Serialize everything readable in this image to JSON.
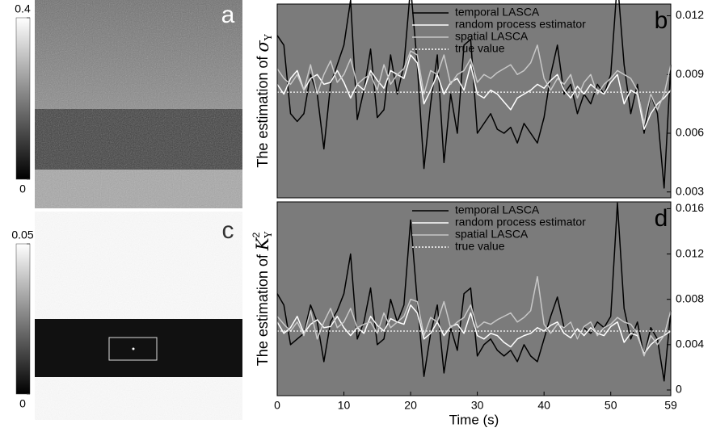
{
  "images": [
    {
      "label": "a",
      "clim": [
        0,
        0.4
      ],
      "ticks": [
        0,
        0.4
      ]
    },
    {
      "label": "c",
      "clim": [
        0,
        0.05
      ],
      "ticks": [
        0,
        0.05
      ]
    }
  ],
  "chart_data": [
    {
      "type": "line",
      "label": "b",
      "ylabel": "The estimation of ",
      "ylabel_symbol": "σ",
      "ylabel_subscript": "Y",
      "x": [
        0,
        1,
        2,
        3,
        4,
        5,
        6,
        7,
        8,
        9,
        10,
        11,
        12,
        13,
        14,
        15,
        16,
        17,
        18,
        19,
        20,
        21,
        22,
        23,
        24,
        25,
        26,
        27,
        28,
        29,
        30,
        31,
        32,
        33,
        34,
        35,
        36,
        37,
        38,
        39,
        40,
        41,
        42,
        43,
        44,
        45,
        46,
        47,
        48,
        49,
        50,
        51,
        52,
        53,
        54,
        55,
        56,
        57,
        58,
        59
      ],
      "xlim": [
        0,
        59
      ],
      "ylim": [
        0.0027,
        0.0126
      ],
      "yticks": [
        0.003,
        0.006,
        0.009,
        0.012
      ],
      "series": [
        {
          "name": "temporal LASCA",
          "color": "#000000",
          "values": [
            0.011,
            0.0105,
            0.007,
            0.0066,
            0.007,
            0.009,
            0.008,
            0.0052,
            0.0085,
            0.0095,
            0.0105,
            0.0128,
            0.0067,
            0.0082,
            0.0103,
            0.0068,
            0.0072,
            0.01,
            0.008,
            0.0095,
            0.0135,
            0.0095,
            0.0042,
            0.0075,
            0.01,
            0.0045,
            0.008,
            0.006,
            0.0105,
            0.0108,
            0.006,
            0.0065,
            0.007,
            0.0062,
            0.006,
            0.0063,
            0.0055,
            0.0065,
            0.006,
            0.0055,
            0.0068,
            0.009,
            0.0105,
            0.008,
            0.0085,
            0.007,
            0.008,
            0.0075,
            0.0085,
            0.008,
            0.009,
            0.0138,
            0.0095,
            0.007,
            0.0085,
            0.006,
            0.008,
            0.007,
            0.0032,
            0.0095
          ]
        },
        {
          "name": "random process estimator",
          "color": "#ffffff",
          "values": [
            0.0085,
            0.008,
            0.0088,
            0.0092,
            0.0082,
            0.0088,
            0.009,
            0.0085,
            0.0086,
            0.0092,
            0.0086,
            0.0078,
            0.0085,
            0.0082,
            0.0092,
            0.0087,
            0.0083,
            0.0092,
            0.009,
            0.0088,
            0.01,
            0.0096,
            0.0075,
            0.0082,
            0.009,
            0.008,
            0.0086,
            0.0088,
            0.0082,
            0.0095,
            0.008,
            0.0078,
            0.0082,
            0.008,
            0.0076,
            0.0072,
            0.0078,
            0.008,
            0.0082,
            0.0085,
            0.0083,
            0.0087,
            0.009,
            0.0082,
            0.0078,
            0.0084,
            0.008,
            0.0085,
            0.0082,
            0.008,
            0.0086,
            0.009,
            0.0075,
            0.0082,
            0.008,
            0.0062,
            0.007,
            0.0075,
            0.0078,
            0.0082
          ]
        },
        {
          "name": "spatial LASCA",
          "color": "#c8c8c8",
          "values": [
            0.0093,
            0.0088,
            0.0085,
            0.009,
            0.0082,
            0.0095,
            0.008,
            0.009,
            0.0097,
            0.0086,
            0.009,
            0.0098,
            0.0085,
            0.0088,
            0.009,
            0.0082,
            0.0095,
            0.0085,
            0.009,
            0.0093,
            0.0102,
            0.01,
            0.008,
            0.0092,
            0.009,
            0.01,
            0.0085,
            0.009,
            0.0092,
            0.0098,
            0.0086,
            0.009,
            0.0088,
            0.0091,
            0.0093,
            0.0095,
            0.009,
            0.0092,
            0.0096,
            0.0105,
            0.0088,
            0.0082,
            0.0088,
            0.0085,
            0.009,
            0.0078,
            0.0086,
            0.009,
            0.008,
            0.0085,
            0.0088,
            0.0092,
            0.009,
            0.0088,
            0.0082,
            0.0065,
            0.008,
            0.0072,
            0.008,
            0.0095
          ]
        },
        {
          "name": "true value",
          "color": "#ffffff",
          "dashed": true,
          "constant": 0.0081
        }
      ]
    },
    {
      "type": "line",
      "label": "d",
      "ylabel": "The estimation of ",
      "ylabel_symbol": "K",
      "ylabel_superscript": "2",
      "ylabel_subscript": "Y",
      "xlabel": "Time (s)",
      "x": [
        0,
        1,
        2,
        3,
        4,
        5,
        6,
        7,
        8,
        9,
        10,
        11,
        12,
        13,
        14,
        15,
        16,
        17,
        18,
        19,
        20,
        21,
        22,
        23,
        24,
        25,
        26,
        27,
        28,
        29,
        30,
        31,
        32,
        33,
        34,
        35,
        36,
        37,
        38,
        39,
        40,
        41,
        42,
        43,
        44,
        45,
        46,
        47,
        48,
        49,
        50,
        51,
        52,
        53,
        54,
        55,
        56,
        57,
        58,
        59
      ],
      "xlim": [
        0,
        59
      ],
      "xticks": [
        0,
        10,
        20,
        30,
        40,
        50,
        59
      ],
      "ylim": [
        -0.0005,
        0.0166
      ],
      "yticks": [
        0,
        0.004,
        0.008,
        0.012,
        0.016
      ],
      "series": [
        {
          "name": "temporal LASCA",
          "color": "#000000",
          "values": [
            0.0085,
            0.0075,
            0.004,
            0.0045,
            0.005,
            0.0075,
            0.006,
            0.0025,
            0.006,
            0.007,
            0.0085,
            0.012,
            0.0045,
            0.006,
            0.009,
            0.004,
            0.0045,
            0.008,
            0.006,
            0.0075,
            0.015,
            0.0078,
            0.0012,
            0.005,
            0.0075,
            0.0015,
            0.0055,
            0.0035,
            0.0085,
            0.009,
            0.003,
            0.004,
            0.0045,
            0.0035,
            0.003,
            0.0035,
            0.0025,
            0.004,
            0.003,
            0.0025,
            0.0045,
            0.0065,
            0.0082,
            0.0055,
            0.006,
            0.0045,
            0.0055,
            0.005,
            0.006,
            0.0055,
            0.0065,
            0.0165,
            0.0072,
            0.0045,
            0.006,
            0.003,
            0.0055,
            0.0045,
            0.0008,
            0.007
          ]
        },
        {
          "name": "random process estimator",
          "color": "#ffffff",
          "values": [
            0.006,
            0.005,
            0.0055,
            0.0065,
            0.005,
            0.0058,
            0.0062,
            0.0055,
            0.0056,
            0.0065,
            0.0055,
            0.0048,
            0.0055,
            0.005,
            0.0065,
            0.0057,
            0.0052,
            0.0063,
            0.006,
            0.0058,
            0.0075,
            0.0068,
            0.0045,
            0.005,
            0.006,
            0.0048,
            0.0056,
            0.0058,
            0.005,
            0.0068,
            0.0048,
            0.0045,
            0.005,
            0.0048,
            0.0042,
            0.0038,
            0.0045,
            0.0048,
            0.005,
            0.0055,
            0.0052,
            0.0057,
            0.006,
            0.005,
            0.0046,
            0.0054,
            0.0048,
            0.0055,
            0.005,
            0.0048,
            0.0056,
            0.006,
            0.0042,
            0.005,
            0.0048,
            0.0032,
            0.004,
            0.0045,
            0.0048,
            0.0052
          ]
        },
        {
          "name": "spatial LASCA",
          "color": "#c8c8c8",
          "values": [
            0.0065,
            0.0058,
            0.0052,
            0.006,
            0.0048,
            0.007,
            0.0045,
            0.006,
            0.0072,
            0.0055,
            0.006,
            0.0072,
            0.0055,
            0.0058,
            0.006,
            0.005,
            0.0068,
            0.0055,
            0.006,
            0.0065,
            0.008,
            0.0078,
            0.0048,
            0.0064,
            0.006,
            0.0078,
            0.0055,
            0.006,
            0.0064,
            0.0075,
            0.0055,
            0.006,
            0.0058,
            0.0062,
            0.0065,
            0.0068,
            0.006,
            0.0064,
            0.007,
            0.01,
            0.0058,
            0.005,
            0.0058,
            0.0055,
            0.006,
            0.0045,
            0.0056,
            0.006,
            0.0048,
            0.0055,
            0.0058,
            0.0064,
            0.006,
            0.0058,
            0.005,
            0.003,
            0.0048,
            0.004,
            0.0048,
            0.007
          ]
        },
        {
          "name": "true value",
          "color": "#ffffff",
          "dashed": true,
          "constant": 0.0052
        }
      ]
    }
  ]
}
